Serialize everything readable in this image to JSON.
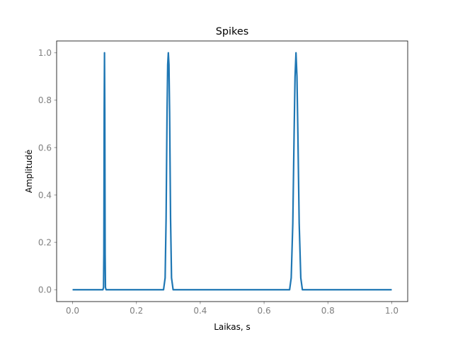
{
  "chart_data": {
    "type": "line",
    "title": "Spikes",
    "xlabel": "Laikas, s",
    "ylabel": "Amplitudė",
    "xlim": [
      -0.05,
      1.05
    ],
    "ylim": [
      -0.05,
      1.05
    ],
    "grid": false,
    "xticks": [
      0.0,
      0.2,
      0.4,
      0.6,
      0.8,
      1.0
    ],
    "xtick_labels": [
      "0.0",
      "0.2",
      "0.4",
      "0.6",
      "0.8",
      "1.0"
    ],
    "yticks": [
      0.0,
      0.2,
      0.4,
      0.6,
      0.8,
      1.0
    ],
    "ytick_labels": [
      "0.0",
      "0.2",
      "0.4",
      "0.6",
      "0.8",
      "1.0"
    ],
    "series": [
      {
        "color": "#1f77b4",
        "x": [
          0.0,
          0.095,
          0.097,
          0.098,
          0.099,
          0.1,
          0.101,
          0.102,
          0.103,
          0.105,
          0.285,
          0.29,
          0.293,
          0.296,
          0.298,
          0.3,
          0.302,
          0.304,
          0.307,
          0.31,
          0.315,
          0.68,
          0.685,
          0.69,
          0.694,
          0.697,
          0.7,
          0.703,
          0.706,
          0.71,
          0.715,
          0.72,
          1.0
        ],
        "y": [
          0.0,
          0.0,
          0.01,
          0.15,
          0.75,
          1.0,
          0.75,
          0.15,
          0.01,
          0.0,
          0.0,
          0.05,
          0.3,
          0.75,
          0.95,
          1.0,
          0.95,
          0.75,
          0.3,
          0.05,
          0.0,
          0.0,
          0.05,
          0.28,
          0.65,
          0.9,
          1.0,
          0.9,
          0.65,
          0.28,
          0.05,
          0.0,
          0.0
        ]
      }
    ]
  }
}
